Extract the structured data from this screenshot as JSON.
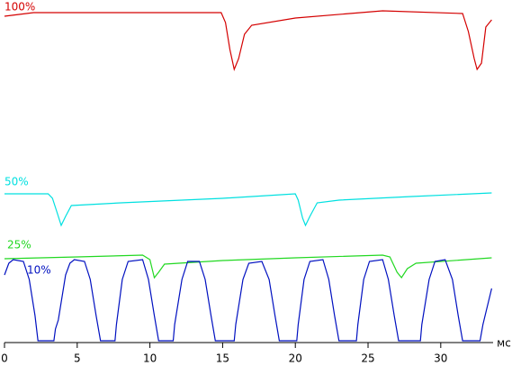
{
  "chart_data": {
    "type": "line",
    "x_label": "мс",
    "xlim": [
      0,
      33.6
    ],
    "xticks": [
      0,
      5,
      10,
      15,
      20,
      25,
      30
    ],
    "ylim": [
      0,
      380
    ],
    "series": [
      {
        "name": "100%",
        "color": "#d40000",
        "x": [
          0,
          2,
          14.9,
          15.2,
          15.5,
          15.8,
          16.1,
          16.5,
          17,
          20,
          26,
          31.5,
          31.9,
          32.3,
          32.5,
          32.8,
          33.1,
          33.5
        ],
        "values": [
          362,
          366,
          366,
          355,
          325,
          303,
          315,
          342,
          352,
          360,
          368,
          365,
          345,
          315,
          303,
          310,
          350,
          358
        ]
      },
      {
        "name": "50%",
        "color": "#00e0e0",
        "x": [
          0,
          3,
          3.3,
          3.6,
          3.9,
          4.2,
          4.6,
          8,
          15,
          20,
          20.2,
          20.5,
          20.7,
          21,
          21.5,
          23,
          28,
          33.5
        ],
        "values": [
          165,
          165,
          160,
          145,
          130,
          140,
          152,
          155,
          160,
          165,
          158,
          138,
          130,
          140,
          155,
          158,
          162,
          166
        ]
      },
      {
        "name": "25%",
        "color": "#22d822",
        "x": [
          0,
          5,
          9.5,
          10,
          10.3,
          10.6,
          11,
          15,
          20,
          26,
          26.5,
          27,
          27.3,
          27.7,
          28.3,
          33.5
        ],
        "values": [
          93,
          95,
          97,
          92,
          72,
          78,
          87,
          91,
          94,
          97,
          95,
          78,
          72,
          82,
          88,
          94
        ]
      },
      {
        "name": "10%",
        "color": "#0010c0",
        "x": [
          0,
          0.3,
          0.6,
          1.3,
          1.7,
          2.1,
          2.3,
          3.4,
          3.5,
          3.7,
          4.2,
          4.5,
          4.8,
          5.5,
          5.9,
          6.3,
          6.6,
          7.6,
          7.7,
          8.1,
          8.5,
          9.5,
          9.9,
          10.3,
          10.6,
          11.6,
          11.7,
          12.2,
          12.6,
          13.4,
          13.8,
          14.2,
          14.5,
          15.8,
          15.9,
          16.4,
          16.8,
          17.7,
          18.2,
          18.6,
          18.9,
          20.1,
          20.2,
          20.6,
          21,
          21.9,
          22.3,
          22.7,
          23,
          24.2,
          24.3,
          24.7,
          25.1,
          26,
          26.4,
          26.8,
          27.1,
          28.6,
          28.7,
          29.2,
          29.6,
          30.3,
          30.8,
          31.2,
          31.5,
          32.7,
          32.9,
          33.5
        ],
        "values": [
          75,
          88,
          92,
          90,
          70,
          30,
          2,
          2,
          15,
          25,
          75,
          88,
          92,
          90,
          70,
          30,
          2,
          2,
          20,
          70,
          90,
          92,
          70,
          30,
          2,
          2,
          20,
          70,
          90,
          90,
          70,
          30,
          2,
          2,
          20,
          70,
          88,
          90,
          70,
          30,
          2,
          2,
          20,
          70,
          90,
          92,
          70,
          30,
          2,
          2,
          20,
          70,
          90,
          92,
          70,
          30,
          2,
          2,
          20,
          70,
          90,
          92,
          70,
          30,
          2,
          2,
          20,
          60
        ]
      }
    ]
  }
}
